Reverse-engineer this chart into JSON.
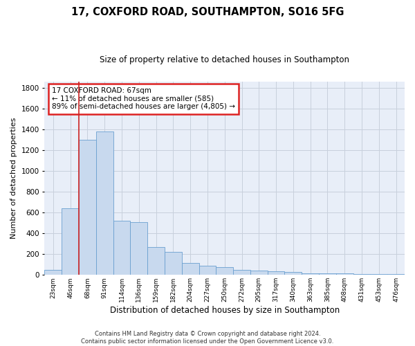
{
  "title_line1": "17, COXFORD ROAD, SOUTHAMPTON, SO16 5FG",
  "title_line2": "Size of property relative to detached houses in Southampton",
  "xlabel": "Distribution of detached houses by size in Southampton",
  "ylabel": "Number of detached properties",
  "categories": [
    "23sqm",
    "46sqm",
    "68sqm",
    "91sqm",
    "114sqm",
    "136sqm",
    "159sqm",
    "182sqm",
    "204sqm",
    "227sqm",
    "250sqm",
    "272sqm",
    "295sqm",
    "317sqm",
    "340sqm",
    "363sqm",
    "385sqm",
    "408sqm",
    "431sqm",
    "453sqm",
    "476sqm"
  ],
  "values": [
    48,
    640,
    1300,
    1380,
    520,
    505,
    270,
    220,
    118,
    88,
    75,
    48,
    42,
    38,
    28,
    18,
    14,
    14,
    9,
    9,
    9
  ],
  "bar_color": "#c8d9ee",
  "bar_edge_color": "#6a9fd0",
  "ylim": [
    0,
    1860
  ],
  "yticks": [
    0,
    200,
    400,
    600,
    800,
    1000,
    1200,
    1400,
    1600,
    1800
  ],
  "property_line_x": 2.0,
  "annotation_title": "17 COXFORD ROAD: 67sqm",
  "annotation_line1": "← 11% of detached houses are smaller (585)",
  "annotation_line2": "89% of semi-detached houses are larger (4,805) →",
  "footer_line1": "Contains HM Land Registry data © Crown copyright and database right 2024.",
  "footer_line2": "Contains public sector information licensed under the Open Government Licence v3.0.",
  "bg_color": "#ffffff",
  "plot_bg_color": "#e8eef8",
  "grid_color": "#c8d0dc"
}
